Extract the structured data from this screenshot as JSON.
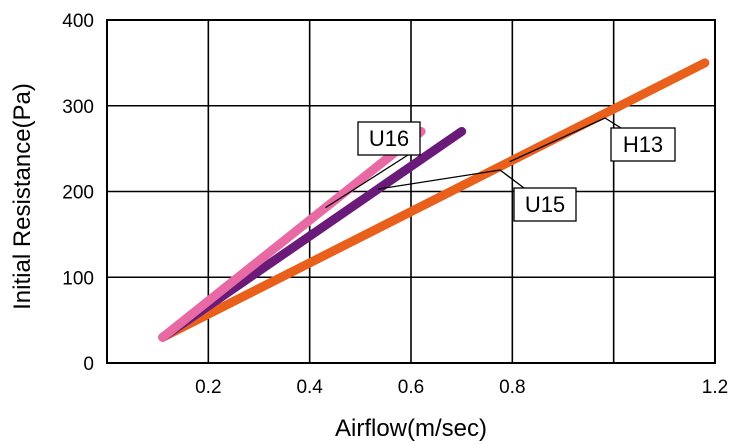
{
  "chart_data": {
    "type": "line",
    "xlabel": "Airflow(m/sec)",
    "ylabel": "Initial Resistance(Pa)",
    "xlim": [
      0.0,
      1.2
    ],
    "ylim": [
      0,
      400
    ],
    "x_ticks": [
      "0.2",
      "0.4",
      "0.6",
      "0.8",
      "1.2"
    ],
    "x_tick_values": [
      0.2,
      0.4,
      0.6,
      0.8,
      1.2
    ],
    "y_ticks": [
      "0",
      "100",
      "200",
      "300",
      "400"
    ],
    "y_tick_values": [
      0,
      100,
      200,
      300,
      400
    ],
    "grid_x": [
      0.2,
      0.4,
      0.6,
      0.8,
      1.0
    ],
    "grid_y": [
      100,
      200,
      300
    ],
    "grid": true,
    "series": [
      {
        "name": "H13",
        "color": "#e8601c",
        "x": [
          0.11,
          1.18
        ],
        "y": [
          30,
          350
        ]
      },
      {
        "name": "U15",
        "color": "#6a1b7a",
        "x": [
          0.11,
          0.7
        ],
        "y": [
          30,
          270
        ]
      },
      {
        "name": "U16",
        "color": "#e86aa4",
        "x": [
          0.11,
          0.62
        ],
        "y": [
          30,
          270
        ]
      }
    ],
    "annotations": [
      {
        "label": "U16",
        "series": "U16"
      },
      {
        "label": "U15",
        "series": "U15"
      },
      {
        "label": "H13",
        "series": "H13"
      }
    ]
  }
}
